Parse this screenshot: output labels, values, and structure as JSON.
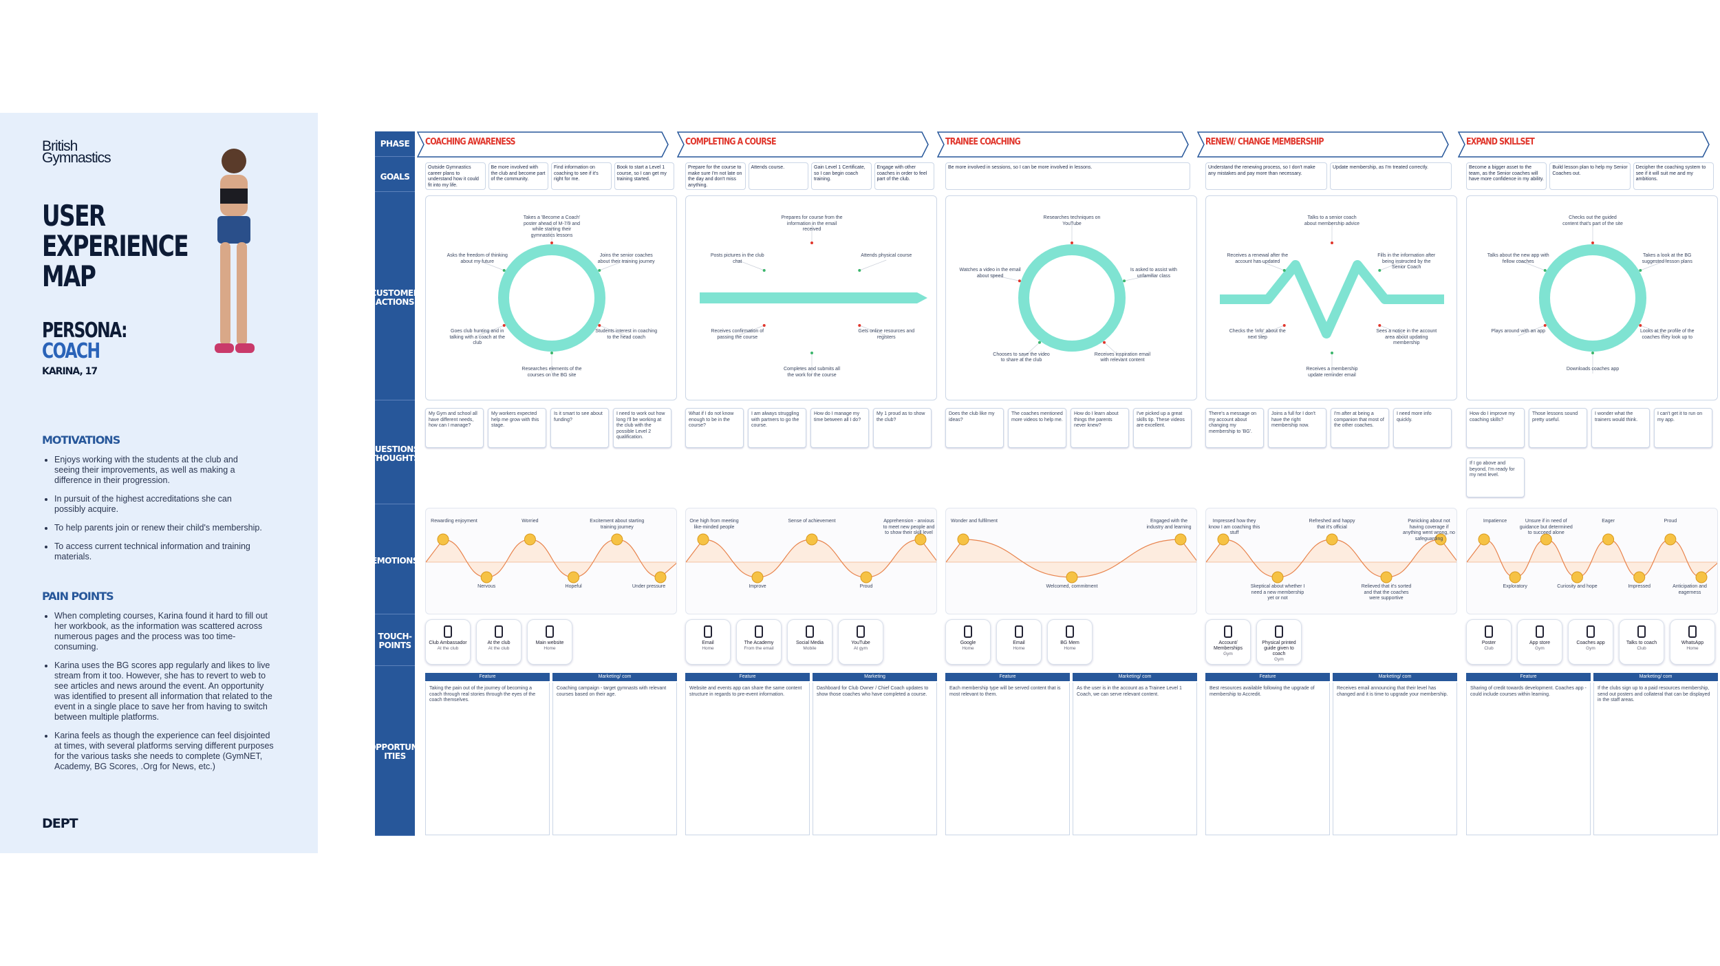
{
  "sidebar": {
    "logo": [
      "British",
      "Gymnastics"
    ],
    "title": [
      "USER",
      "EXPERIENCE",
      "MAP"
    ],
    "persona_label": "PERSONA:",
    "persona": "COACH",
    "persona_name": "KARINA, 17",
    "motivations_heading": "MOTIVATIONS",
    "motivations": [
      "Enjoys working with the students at the club and seeing their improvements, as well as making a difference in their progression.",
      "In pursuit of the highest accreditations she can possibly acquire.",
      "To help parents join or renew their child's membership.",
      "To access current technical information and training materials."
    ],
    "pain_points_heading": "PAIN POINTS",
    "pain_points": [
      "When completing courses, Karina found it hard to fill out her workbook, as the information was scattered across numerous pages and the process was too time-consuming.",
      "Karina uses the BG scores app regularly and likes to live stream from it too. However, she has to revert to web to see articles and news around the event. An opportunity was identified to present all information that related to the event in a single place to save her from having to switch between multiple platforms.",
      "Karina feels as though the experience can feel disjointed at times, with several platforms serving different purposes for the various tasks she needs to complete (GymNET, Academy, BG Scores, .Org for News, etc.)"
    ],
    "footer": "DEPT"
  },
  "row_labels": [
    "PHASE",
    "GOALS",
    "CUSTOMER ACTIONS",
    "QUESTIONS/ THOUGHTS",
    "EMOTIONS",
    "TOUCH-POINTS",
    "OPPORTUN-ITIES"
  ],
  "phases": [
    {
      "name": "COACHING AWARENESS",
      "shape": "circle",
      "goals": [
        "Outside Gymnastics career plans to understand how it could fit into my life.",
        "Be more involved with the club and become part of the community.",
        "Find information on coaching to see if it's right for me.",
        "Book to start a Level 1 course, so I can get my training started."
      ],
      "actions": [
        "Takes a 'Become a Coach' poster ahead of M-7/9 and while starting their gymnastics lessons",
        "Joins the senior coaches about their training journey",
        "Students interest in coaching to the head coach",
        "Researches elements of the courses on the BG site",
        "Goes club hunting and in talking with a coach at the club",
        "Asks the freedom of thinking about my future"
      ],
      "questions": [
        "My Gym and school all have different needs, how can I manage?",
        "My workers expected help me grow with this stage.",
        "Is it smart to see about funding?",
        "I need to work out how long I'll be working at the club with the possible Level 2 qualification."
      ],
      "emotions": [
        "Rewarding enjoyment",
        "Nervous",
        "Worried",
        "Hopeful",
        "Excitement about starting training journey",
        "Under pressure"
      ],
      "touchpoints": [
        {
          "name": "Club Ambassador",
          "place": "At the club"
        },
        {
          "name": "At the club",
          "place": "At the club"
        },
        {
          "name": "Main website",
          "place": "Home"
        }
      ],
      "opportunities": [
        {
          "head": "Feature",
          "body": "Taking the pain out of the journey of becoming a coach through real stories through the eyes of the coach themselves."
        },
        {
          "head": "Marketing/ com",
          "body": "Coaching campaign - target gymnasts with relevant courses based on their age."
        }
      ]
    },
    {
      "name": "COMPLETING A COURSE",
      "shape": "arrow",
      "goals": [
        "Prepare for the course to make sure I'm not late on the day and don't miss anything.",
        "Attends course.",
        "Gain Level 1 Certificate, so I can begin coach training.",
        "Engage with other coaches in order to feel part of the club."
      ],
      "actions": [
        "Prepares for course from the information in the email received",
        "Attends physical course",
        "Gets online resources and registers",
        "Completes and submits all the work for the course",
        "Receives confirmation of passing the course",
        "Posts pictures in the club chat"
      ],
      "questions": [
        "What if I do not know enough to be in the course?",
        "I am always struggling with partners to go the course.",
        "How do I manage my time between all I do?",
        "My 1 proud as to show the club?"
      ],
      "emotions": [
        "One high from meeting like-minded people",
        "Improve",
        "Sense of achievement",
        "Proud",
        "Apprehension - anxious to meet new people and to show their skill level"
      ],
      "touchpoints": [
        {
          "name": "Email",
          "place": "Home"
        },
        {
          "name": "The Academy",
          "place": "From the email"
        },
        {
          "name": "Social Media",
          "place": "Mobile"
        },
        {
          "name": "YouTube",
          "place": "At gym"
        }
      ],
      "opportunities": [
        {
          "head": "Feature",
          "body": "Website and events app can share the same content structure in regards to pre-event information."
        },
        {
          "head": "Marketing",
          "body": "Dashboard for Club Owner / Chief Coach updates to show those coaches who have completed a course."
        }
      ]
    },
    {
      "name": "TRAINEE COACHING",
      "shape": "circle",
      "goals": [
        "Be more involved in sessions, so I can be more involved in lessons."
      ],
      "actions": [
        "Researches techniques on YouTube",
        "Is asked to assist with unfamiliar class",
        "Receives inspiration email with relevant content",
        "Chooses to save the video to share at the club",
        "Watches a video in the email about speed"
      ],
      "questions": [
        "Does the club like my ideas?",
        "The coaches mentioned more videos to help me.",
        "How do I learn about things the parents never knew?",
        "I've picked up a great skills tip. These videos are excellent."
      ],
      "emotions": [
        "Wonder and fulfilment",
        "Welcomed, commitment",
        "Engaged with the industry and learning"
      ],
      "touchpoints": [
        {
          "name": "Google",
          "place": "Home"
        },
        {
          "name": "Email",
          "place": "Home"
        },
        {
          "name": "BG Mem",
          "place": "Home"
        }
      ],
      "opportunities": [
        {
          "head": "Feature",
          "body": "Each membership type will be served content that is most relevant to them."
        },
        {
          "head": "Marketing/ com",
          "body": "As the user is in the account as a Trainee Level 1 Coach, we can serve relevant content."
        }
      ]
    },
    {
      "name": "RENEW/ CHANGE MEMBERSHIP",
      "shape": "zigzag",
      "goals": [
        "Understand the renewing process, so I don't make any mistakes and pay more than necessary.",
        "Update membership, as I'm treated correctly."
      ],
      "actions": [
        "Talks to a senior coach about membership advice",
        "Fills in the information after being instructed by the Senior Coach",
        "Sees a notice in the account area about updating membership",
        "Receives a membership update reminder email",
        "Checks the 'info' about the next step",
        "Receives a renewal after the account has updated"
      ],
      "questions": [
        "There's a message on my account about changing my membership to 'BG'.",
        "Joins a full for I don't have the right membership now.",
        "I'm after at being a companion that most of the other coaches.",
        "I need more info quickly."
      ],
      "emotions": [
        "Impressed how they know I am coaching this stuff",
        "Skeptical about whether I need a new membership yet or not",
        "Refreshed and happy that it's official",
        "Relieved that it's sorted and that the coaches were supportive",
        "Panicking about not having coverage if anything went wrong, no safeguarding"
      ],
      "touchpoints": [
        {
          "name": "Account/ Memberships",
          "place": "Gym"
        },
        {
          "name": "Physical printed guide given to coach",
          "place": "Gym"
        }
      ],
      "opportunities": [
        {
          "head": "Feature",
          "body": "Best resources available following the upgrade of membership to Accredit."
        },
        {
          "head": "Marketing/ com",
          "body": "Receives email announcing that their level has changed and it is time to upgrade your membership."
        }
      ]
    },
    {
      "name": "EXPAND SKILLSET",
      "shape": "circle",
      "goals": [
        "Become a bigger asset to the team, as the Senior coaches will have more confidence in my ability.",
        "Build lesson plan to help my Senior Coaches out.",
        "Decipher the coaching system to see if it will suit me and my ambitions."
      ],
      "actions": [
        "Checks out the guided content that's part of the site",
        "Takes a look at the BG suggested lesson plans",
        "Looks at the profile of the coaches they look up to",
        "Downloads coaches app",
        "Plays around with an app",
        "Talks about the new app with fellow coaches"
      ],
      "questions": [
        "How do I improve my coaching skills?",
        "Those lessons sound pretty useful.",
        "I wonder what the trainers would think.",
        "I can't get it to run on my app.",
        "If I go above and beyond, I'm ready for my next level."
      ],
      "emotions": [
        "Impatience",
        "Exploratory",
        "Unsure if in need of guidance but determined to succeed alone",
        "Curiosity and hope",
        "Eager",
        "Impressed",
        "Proud",
        "Anticipation and eagerness"
      ],
      "touchpoints": [
        {
          "name": "Poster",
          "place": "Club"
        },
        {
          "name": "App store",
          "place": "Gym"
        },
        {
          "name": "Coaches app",
          "place": "Gym"
        },
        {
          "name": "Talks to coach",
          "place": "Club"
        },
        {
          "name": "WhatsApp",
          "place": "Home"
        }
      ],
      "opportunities": [
        {
          "head": "Feature",
          "body": "Sharing of credit towards development. Coaches app - could include courses within learning."
        },
        {
          "head": "Marketing/ com",
          "body": "If the clubs sign up to a paid resources membership, send out posters and collateral that can be displayed in the staff areas."
        }
      ]
    }
  ]
}
